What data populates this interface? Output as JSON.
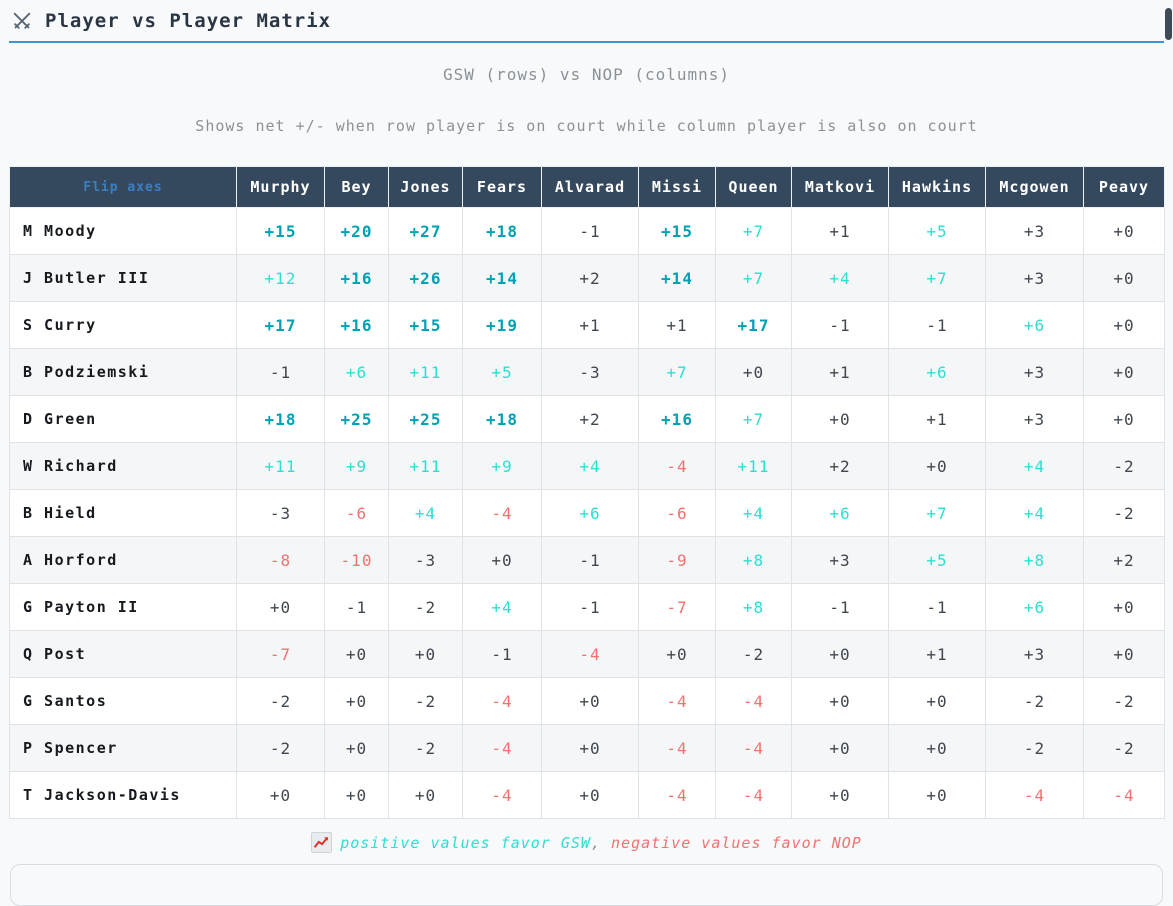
{
  "header": {
    "icon": "crossed-swords",
    "title": "Player vs Player Matrix"
  },
  "subtitle1": "GSW (rows) vs NOP (columns)",
  "subtitle2": "Shows net +/- when row player is on court while column player is also on court",
  "matrix": {
    "corner_label": "Flip axes",
    "columns": [
      "Murphy",
      "Bey",
      "Jones",
      "Fears",
      "Alvarad",
      "Missi",
      "Queen",
      "Matkovi",
      "Hawkins",
      "Mcgowen",
      "Peavy"
    ],
    "rows": [
      {
        "label": "M Moody",
        "values": [
          "+15",
          "+20",
          "+27",
          "+18",
          "-1",
          "+15",
          "+7",
          "+1",
          "+5",
          "+3",
          "+0"
        ]
      },
      {
        "label": "J Butler III",
        "values": [
          "+12",
          "+16",
          "+26",
          "+14",
          "+2",
          "+14",
          "+7",
          "+4",
          "+7",
          "+3",
          "+0"
        ]
      },
      {
        "label": "S Curry",
        "values": [
          "+17",
          "+16",
          "+15",
          "+19",
          "+1",
          "+1",
          "+17",
          "-1",
          "-1",
          "+6",
          "+0"
        ]
      },
      {
        "label": "B Podziemski",
        "values": [
          "-1",
          "+6",
          "+11",
          "+5",
          "-3",
          "+7",
          "+0",
          "+1",
          "+6",
          "+3",
          "+0"
        ]
      },
      {
        "label": "D Green",
        "values": [
          "+18",
          "+25",
          "+25",
          "+18",
          "+2",
          "+16",
          "+7",
          "+0",
          "+1",
          "+3",
          "+0"
        ]
      },
      {
        "label": "W Richard",
        "values": [
          "+11",
          "+9",
          "+11",
          "+9",
          "+4",
          "-4",
          "+11",
          "+2",
          "+0",
          "+4",
          "-2"
        ]
      },
      {
        "label": "B Hield",
        "values": [
          "-3",
          "-6",
          "+4",
          "-4",
          "+6",
          "-6",
          "+4",
          "+6",
          "+7",
          "+4",
          "-2"
        ]
      },
      {
        "label": "A Horford",
        "values": [
          "-8",
          "-10",
          "-3",
          "+0",
          "-1",
          "-9",
          "+8",
          "+3",
          "+5",
          "+8",
          "+2"
        ]
      },
      {
        "label": "G Payton II",
        "values": [
          "+0",
          "-1",
          "-2",
          "+4",
          "-1",
          "-7",
          "+8",
          "-1",
          "-1",
          "+6",
          "+0"
        ]
      },
      {
        "label": "Q Post",
        "values": [
          "-7",
          "+0",
          "+0",
          "-1",
          "-4",
          "+0",
          "-2",
          "+0",
          "+1",
          "+3",
          "+0"
        ]
      },
      {
        "label": "G Santos",
        "values": [
          "-2",
          "+0",
          "-2",
          "-4",
          "+0",
          "-4",
          "-4",
          "+0",
          "+0",
          "-2",
          "-2"
        ]
      },
      {
        "label": "P Spencer",
        "values": [
          "-2",
          "+0",
          "-2",
          "-4",
          "+0",
          "-4",
          "-4",
          "+0",
          "+0",
          "-2",
          "-2"
        ]
      },
      {
        "label": "T Jackson-Davis",
        "values": [
          "+0",
          "+0",
          "+0",
          "-4",
          "+0",
          "-4",
          "-4",
          "+0",
          "+0",
          "-4",
          "-4"
        ]
      }
    ]
  },
  "legend": {
    "icon": "chart-increasing",
    "positive_text": "positive values favor GSW",
    "separator": ",",
    "negative_text": "negative values favor NOP"
  },
  "colors": {
    "strong_positive": "#00a1b2",
    "positive": "#2bdfd2",
    "neutral": "#40474e",
    "negative": "#f3716f",
    "header_bg": "#35495e",
    "accent_line": "#3b97d3",
    "flip_link": "#3c7fc0"
  }
}
